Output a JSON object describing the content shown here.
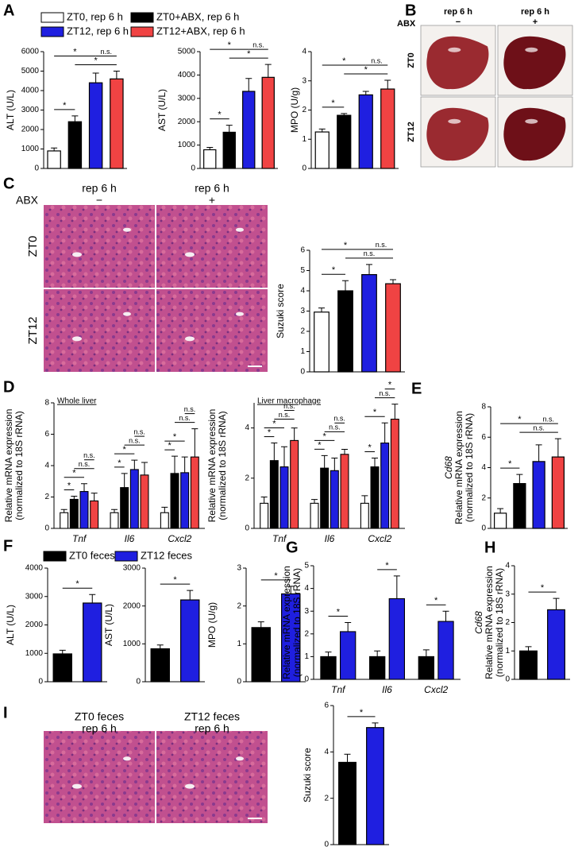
{
  "panel_labels": [
    "A",
    "B",
    "C",
    "D",
    "E",
    "F",
    "G",
    "H",
    "I"
  ],
  "legends": [
    {
      "items": [
        {
          "name": "ZT0, rep 6 h",
          "color": "#ffffff"
        },
        {
          "name": "ZT0+ABX, rep 6 h",
          "color": "#000000"
        },
        {
          "name": "ZT12, rep 6 h",
          "color": "#1f1fe0"
        },
        {
          "name": "ZT12+ABX, rep 6 h",
          "color": "#f04343"
        }
      ]
    },
    {
      "items": [
        {
          "name": "ZT0 feces",
          "color": "#000000"
        },
        {
          "name": "ZT12 feces",
          "color": "#1f1fe0"
        }
      ]
    }
  ],
  "photos": [
    {
      "columns": [
        "rep 6 h",
        "rep 6 h"
      ],
      "treatment": "ABX",
      "column_marks": [
        "−",
        "+"
      ],
      "rows": [
        "ZT0",
        "ZT12"
      ]
    },
    {
      "columns": [
        "rep 6 h",
        "rep 6 h"
      ],
      "treatment": "ABX",
      "column_marks": [
        "−",
        "+"
      ],
      "rows": [
        "ZT0",
        "ZT12"
      ]
    },
    {
      "columns": [
        [
          "ZT0 feces",
          "rep 6 h"
        ],
        [
          "ZT12 feces",
          "rep 6 h"
        ]
      ]
    }
  ],
  "chart_data": [
    {
      "type": "bar",
      "ylabel": [
        "ALT (U/L)"
      ],
      "values": [
        900,
        2400,
        4400,
        4600
      ],
      "errors": [
        150,
        300,
        500,
        400
      ],
      "colors": [
        "#ffffff",
        "#000000",
        "#1f1fe0",
        "#f04343"
      ],
      "ylim": [
        0,
        6000
      ],
      "yticks": [
        0,
        1000,
        2000,
        3000,
        4000,
        5000,
        6000
      ],
      "annotations": [
        {
          "text": "*",
          "from": 0,
          "to": 1
        },
        {
          "text": "*",
          "from": 1,
          "to": 3
        },
        {
          "text": "*",
          "from": 0,
          "to": 2
        },
        {
          "text": "n.s.",
          "from": 2,
          "to": 3
        }
      ]
    },
    {
      "type": "bar",
      "ylabel": [
        "AST (U/L)"
      ],
      "values": [
        800,
        1550,
        3300,
        3900
      ],
      "errors": [
        100,
        300,
        550,
        550
      ],
      "colors": [
        "#ffffff",
        "#000000",
        "#1f1fe0",
        "#f04343"
      ],
      "ylim": [
        0,
        5000
      ],
      "yticks": [
        0,
        1000,
        2000,
        3000,
        4000,
        5000
      ],
      "annotations": [
        {
          "text": "*",
          "from": 0,
          "to": 1
        },
        {
          "text": "*",
          "from": 1,
          "to": 3
        },
        {
          "text": "*",
          "from": 0,
          "to": 2
        },
        {
          "text": "n.s.",
          "from": 2,
          "to": 3
        }
      ]
    },
    {
      "type": "bar",
      "ylabel": [
        "MPO (U/g)"
      ],
      "values": [
        1.25,
        1.82,
        2.52,
        2.72
      ],
      "errors": [
        0.1,
        0.06,
        0.12,
        0.3
      ],
      "colors": [
        "#ffffff",
        "#000000",
        "#1f1fe0",
        "#f04343"
      ],
      "ylim": [
        0,
        4
      ],
      "yticks": [
        0,
        1,
        2,
        3,
        4
      ],
      "annotations": [
        {
          "text": "*",
          "from": 0,
          "to": 1
        },
        {
          "text": "*",
          "from": 1,
          "to": 3
        },
        {
          "text": "*",
          "from": 0,
          "to": 2
        },
        {
          "text": "n.s.",
          "from": 2,
          "to": 3
        }
      ]
    },
    {
      "type": "bar",
      "ylabel": [
        "Suzuki score"
      ],
      "values": [
        2.95,
        4.0,
        4.8,
        4.35
      ],
      "errors": [
        0.2,
        0.5,
        0.5,
        0.2
      ],
      "colors": [
        "#ffffff",
        "#000000",
        "#1f1fe0",
        "#f04343"
      ],
      "ylim": [
        0,
        6
      ],
      "yticks": [
        0,
        1,
        2,
        3,
        4,
        5,
        6
      ],
      "annotations": [
        {
          "text": "*",
          "from": 0,
          "to": 1
        },
        {
          "text": "n.s.",
          "from": 1,
          "to": 3
        },
        {
          "text": "*",
          "from": 0,
          "to": 2
        },
        {
          "text": "n.s.",
          "from": 2,
          "to": 3
        }
      ]
    },
    {
      "type": "grouped_bar",
      "subtitle": "Whole liver",
      "ylabel": [
        "Relative mRNA expression",
        "(normalized to 18S rRNA)"
      ],
      "categories": [
        "Tnf",
        "Il6",
        "Cxcl2"
      ],
      "ylim": [
        0,
        8
      ],
      "yticks": [
        0,
        2,
        4,
        6,
        8
      ],
      "series": [
        {
          "color": "#ffffff",
          "values": [
            1.0,
            1.0,
            1.0
          ],
          "errors": [
            0.2,
            0.2,
            0.35
          ]
        },
        {
          "color": "#000000",
          "values": [
            1.85,
            2.6,
            3.5
          ],
          "errors": [
            0.2,
            0.9,
            1.1
          ]
        },
        {
          "color": "#1f1fe0",
          "values": [
            2.35,
            3.75,
            3.55
          ],
          "errors": [
            0.5,
            0.6,
            1.0
          ]
        },
        {
          "color": "#f04343",
          "values": [
            1.75,
            3.4,
            4.55
          ],
          "errors": [
            0.5,
            0.8,
            1.8
          ]
        }
      ],
      "annotations": [
        {
          "text": "*",
          "group": 0,
          "from": 0,
          "to": 1
        },
        {
          "text": "*",
          "group": 0,
          "from": 0,
          "to": 2
        },
        {
          "text": "n.s.",
          "group": 0,
          "from": 1,
          "to": 3
        },
        {
          "text": "n.s.",
          "group": 0,
          "from": 2,
          "to": 3
        },
        {
          "text": "*",
          "group": 1,
          "from": 0,
          "to": 1
        },
        {
          "text": "*",
          "group": 1,
          "from": 0,
          "to": 2
        },
        {
          "text": "n.s.",
          "group": 1,
          "from": 1,
          "to": 3
        },
        {
          "text": "n.s.",
          "group": 1,
          "from": 2,
          "to": 3
        },
        {
          "text": "*",
          "group": 2,
          "from": 0,
          "to": 1
        },
        {
          "text": "*",
          "group": 2,
          "from": 0,
          "to": 2
        },
        {
          "text": "n.s.",
          "group": 2,
          "from": 1,
          "to": 3
        },
        {
          "text": "n.s.",
          "group": 2,
          "from": 2,
          "to": 3
        }
      ]
    },
    {
      "type": "grouped_bar",
      "subtitle": "Liver macrophage",
      "ylabel": [
        "Relative mRNA expression",
        "(normalized to 18S rRNA)"
      ],
      "categories": [
        "Tnf",
        "Il6",
        "Cxcl2"
      ],
      "ylim": [
        0,
        5
      ],
      "yticks": [
        0,
        2,
        4
      ],
      "series": [
        {
          "color": "#ffffff",
          "values": [
            1.0,
            1.0,
            1.0
          ],
          "errors": [
            0.25,
            0.15,
            0.3
          ]
        },
        {
          "color": "#000000",
          "values": [
            2.7,
            2.4,
            2.45
          ],
          "errors": [
            0.7,
            0.5,
            0.35
          ]
        },
        {
          "color": "#1f1fe0",
          "values": [
            2.45,
            2.3,
            3.4
          ],
          "errors": [
            0.8,
            0.5,
            0.8
          ]
        },
        {
          "color": "#f04343",
          "values": [
            3.5,
            2.95,
            4.35
          ],
          "errors": [
            0.5,
            0.2,
            0.6
          ]
        }
      ],
      "annotations": [
        {
          "text": "*",
          "group": 0,
          "from": 0,
          "to": 1
        },
        {
          "text": "*",
          "group": 0,
          "from": 0,
          "to": 2
        },
        {
          "text": "n.s.",
          "group": 0,
          "from": 1,
          "to": 3
        },
        {
          "text": "n.s.",
          "group": 0,
          "from": 2,
          "to": 3
        },
        {
          "text": "*",
          "group": 1,
          "from": 0,
          "to": 1
        },
        {
          "text": "*",
          "group": 1,
          "from": 0,
          "to": 2
        },
        {
          "text": "n.s.",
          "group": 1,
          "from": 1,
          "to": 3
        },
        {
          "text": "n.s.",
          "group": 1,
          "from": 2,
          "to": 3
        },
        {
          "text": "*",
          "group": 2,
          "from": 0,
          "to": 1
        },
        {
          "text": "*",
          "group": 2,
          "from": 0,
          "to": 2
        },
        {
          "text": "n.s.",
          "group": 2,
          "from": 1,
          "to": 3
        },
        {
          "text": "*",
          "group": 2,
          "from": 2,
          "to": 3
        }
      ]
    },
    {
      "type": "bar",
      "ylabel": [
        "Cd68",
        "Relative mRNA expression",
        "(normalized to 18S rRNA)"
      ],
      "values": [
        1.0,
        2.95,
        4.4,
        4.7
      ],
      "errors": [
        0.3,
        0.6,
        1.1,
        1.2
      ],
      "colors": [
        "#ffffff",
        "#000000",
        "#1f1fe0",
        "#f04343"
      ],
      "ylim": [
        0,
        8
      ],
      "yticks": [
        0,
        2,
        4,
        6,
        8
      ],
      "annotations": [
        {
          "text": "*",
          "from": 0,
          "to": 1
        },
        {
          "text": "n.s.",
          "from": 1,
          "to": 3
        },
        {
          "text": "*",
          "from": 0,
          "to": 2
        },
        {
          "text": "n.s.",
          "from": 2,
          "to": 3
        }
      ]
    },
    {
      "type": "bar",
      "ylabel": [
        "ALT (U/L)"
      ],
      "values": [
        980,
        2770
      ],
      "errors": [
        130,
        300
      ],
      "colors": [
        "#000000",
        "#1f1fe0"
      ],
      "ylim": [
        0,
        4000
      ],
      "yticks": [
        0,
        1000,
        2000,
        3000,
        4000
      ],
      "annotations": [
        {
          "text": "*",
          "from": 0,
          "to": 1
        }
      ]
    },
    {
      "type": "bar",
      "ylabel": [
        "AST (U/L)"
      ],
      "values": [
        870,
        2160
      ],
      "errors": [
        100,
        250
      ],
      "colors": [
        "#000000",
        "#1f1fe0"
      ],
      "ylim": [
        0,
        3000
      ],
      "yticks": [
        0,
        1000,
        2000,
        3000
      ],
      "annotations": [
        {
          "text": "*",
          "from": 0,
          "to": 1
        }
      ]
    },
    {
      "type": "bar",
      "ylabel": [
        "MPO (U/g)"
      ],
      "values": [
        1.43,
        2.32
      ],
      "errors": [
        0.15,
        0.2
      ],
      "colors": [
        "#000000",
        "#1f1fe0"
      ],
      "ylim": [
        0,
        3
      ],
      "yticks": [
        0,
        1,
        2,
        3
      ],
      "annotations": [
        {
          "text": "*",
          "from": 0,
          "to": 1
        }
      ]
    },
    {
      "type": "grouped_bar",
      "ylabel": [
        "Relative mRNA expression",
        "(normalized to 18S rRNA)"
      ],
      "categories": [
        "Tnf",
        "Il6",
        "Cxcl2"
      ],
      "ylim": [
        0,
        5
      ],
      "yticks": [
        0,
        1,
        2,
        3,
        4,
        5
      ],
      "series": [
        {
          "color": "#000000",
          "values": [
            1.0,
            1.0,
            1.0
          ],
          "errors": [
            0.2,
            0.25,
            0.3
          ]
        },
        {
          "color": "#1f1fe0",
          "values": [
            2.1,
            3.55,
            2.55
          ],
          "errors": [
            0.4,
            1.0,
            0.45
          ]
        }
      ],
      "annotations": [
        {
          "text": "*",
          "group": 0,
          "from": 0,
          "to": 1
        },
        {
          "text": "*",
          "group": 1,
          "from": 0,
          "to": 1
        },
        {
          "text": "*",
          "group": 2,
          "from": 0,
          "to": 1
        }
      ]
    },
    {
      "type": "bar",
      "ylabel": [
        "Cd68",
        "Relative mRNA expression",
        "(normalized to 18S rRNA)"
      ],
      "values": [
        1.0,
        2.45
      ],
      "errors": [
        0.15,
        0.4
      ],
      "colors": [
        "#000000",
        "#1f1fe0"
      ],
      "ylim": [
        0,
        4
      ],
      "yticks": [
        0,
        1,
        2,
        3,
        4
      ],
      "annotations": [
        {
          "text": "*",
          "from": 0,
          "to": 1
        }
      ]
    },
    {
      "type": "bar",
      "ylabel": [
        "Suzuki score"
      ],
      "values": [
        3.55,
        5.05
      ],
      "errors": [
        0.35,
        0.2
      ],
      "colors": [
        "#000000",
        "#1f1fe0"
      ],
      "ylim": [
        0,
        6
      ],
      "yticks": [
        0,
        2,
        4,
        6
      ],
      "annotations": [
        {
          "text": "*",
          "from": 0,
          "to": 1
        }
      ]
    }
  ]
}
